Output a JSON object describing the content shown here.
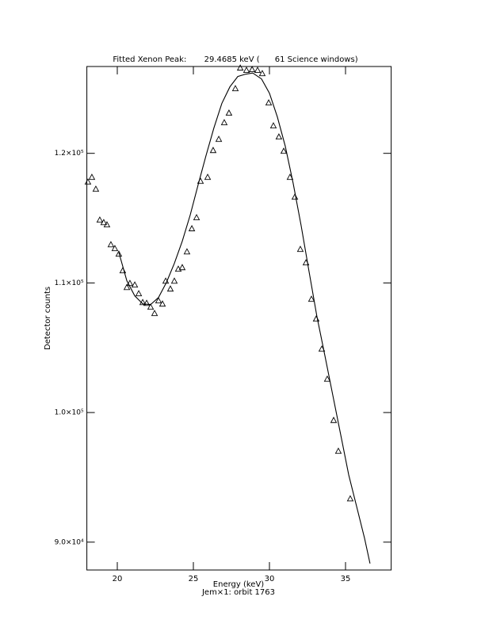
{
  "chart_data": {
    "type": "scatter",
    "title": "Fitted Xenon Peak:       29.4685 keV (      61 Science windows)",
    "x_label": "Energy (keV)",
    "subtitle": "Jem×1: orbit 1763",
    "y_label": "Detector counts",
    "xlim": [
      18,
      38
    ],
    "ylim": [
      87850,
      126700
    ],
    "xticks": [
      20,
      25,
      30,
      35
    ],
    "yticks": [
      {
        "value": 90000,
        "label": "9.0×10⁴"
      },
      {
        "value": 100000,
        "label": "1.0×10⁵"
      },
      {
        "value": 110000,
        "label": "1.1×10⁵"
      },
      {
        "value": 120000,
        "label": "1.2×10⁵"
      }
    ],
    "color": "#000000",
    "series": [
      {
        "style": "markers",
        "x": [
          18.07,
          18.33,
          18.59,
          18.85,
          19.11,
          19.32,
          19.58,
          19.84,
          20.1,
          20.36,
          20.63,
          20.83,
          21.15,
          21.41,
          21.67,
          21.93,
          22.19,
          22.45,
          22.71,
          22.97,
          23.18,
          23.49,
          23.75,
          24.01,
          24.27,
          24.58,
          24.9,
          25.21,
          25.47,
          25.94,
          26.3,
          26.67,
          27.03,
          27.34,
          27.76,
          28.08,
          28.49,
          28.86,
          29.22,
          29.53,
          29.95,
          30.26,
          30.62,
          30.94,
          31.35,
          31.67,
          32.03,
          32.4,
          32.76,
          33.07,
          33.44,
          33.8,
          34.22,
          34.53,
          35.31
        ],
        "values": [
          117800,
          118170,
          117250,
          114870,
          114680,
          114500,
          112970,
          112670,
          112240,
          110960,
          109670,
          109980,
          109860,
          109190,
          108510,
          108450,
          108150,
          107660,
          108640,
          108390,
          110160,
          109550,
          110160,
          111080,
          111200,
          112420,
          114200,
          115050,
          117860,
          118170,
          120240,
          121100,
          122380,
          123120,
          125010,
          126600,
          126420,
          126480,
          126420,
          126170,
          123910,
          122140,
          121280,
          120180,
          118170,
          116640,
          112610,
          111570,
          108760,
          107230,
          104910,
          102590,
          99410,
          97030,
          93360
        ]
      },
      {
        "style": "line",
        "x": [
          20.1,
          20.63,
          21.15,
          21.67,
          22.19,
          22.71,
          23.23,
          23.75,
          24.27,
          24.79,
          25.31,
          25.83,
          26.35,
          26.87,
          27.4,
          27.92,
          28.44,
          28.9,
          29.48,
          30.0,
          30.52,
          31.04,
          31.56,
          32.08,
          32.6,
          33.12,
          33.65,
          34.17,
          34.69,
          35.21,
          35.73,
          36.25,
          36.61
        ],
        "values": [
          112360,
          110160,
          109000,
          108390,
          108330,
          108880,
          110040,
          111510,
          113220,
          115230,
          117560,
          119820,
          121960,
          123850,
          125130,
          125930,
          126110,
          126200,
          125740,
          124640,
          122810,
          120550,
          117680,
          114440,
          110900,
          107410,
          104360,
          101300,
          98250,
          95190,
          92750,
          90300,
          88350
        ]
      }
    ]
  }
}
